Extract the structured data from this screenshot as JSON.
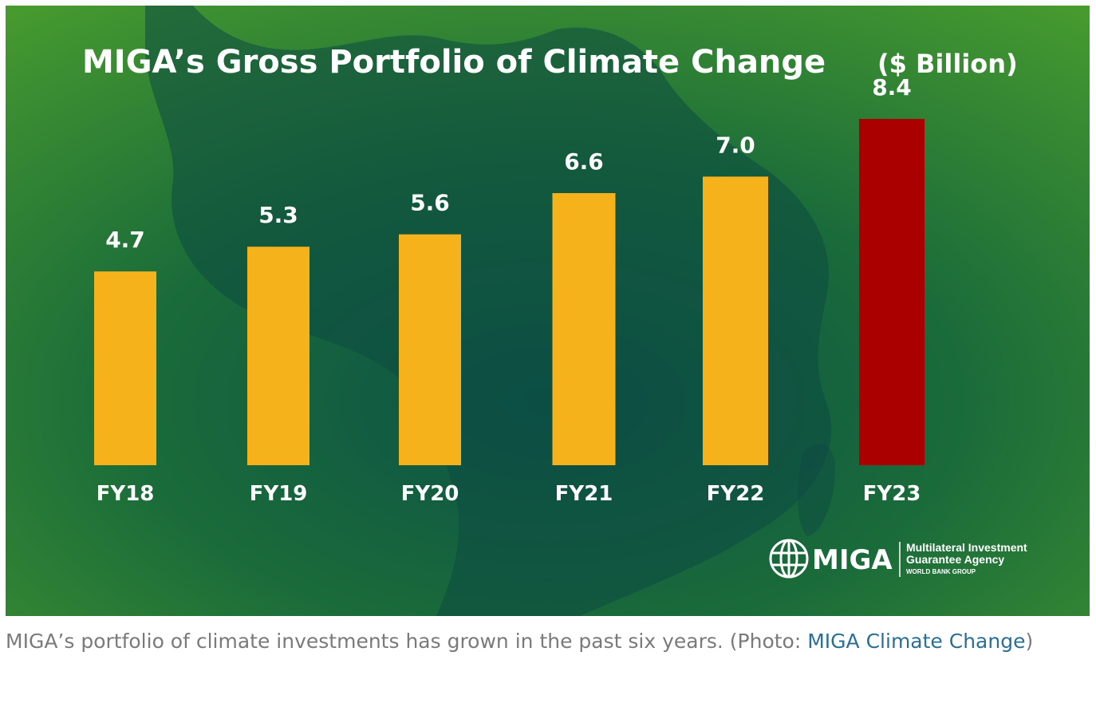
{
  "chart_data": {
    "type": "bar",
    "title": "MIGA’s Gross Portfolio of Climate Change",
    "unit": "($ Billion)",
    "categories": [
      "FY18",
      "FY19",
      "FY20",
      "FY21",
      "FY22",
      "FY23"
    ],
    "values": [
      4.7,
      5.3,
      5.6,
      6.6,
      7.0,
      8.4
    ],
    "value_labels": [
      "4.7",
      "5.3",
      "5.6",
      "6.6",
      "7.0",
      "8.4"
    ],
    "bar_colors": [
      "#f5b21b",
      "#f5b21b",
      "#f5b21b",
      "#f5b21b",
      "#f5b21b",
      "#ab0000"
    ],
    "xlabel": "",
    "ylabel": "",
    "ylim": [
      0,
      8.4
    ],
    "grid": false,
    "legend": "none"
  },
  "logo": {
    "name": "MIGA",
    "line1": "Multilateral Investment",
    "line2": "Guarantee Agency",
    "line3": "WORLD BANK GROUP"
  },
  "caption": {
    "text": "MIGA’s portfolio of climate investments has grown in the past six years. (Photo: ",
    "link": "MIGA Climate Change",
    "suffix": ")"
  },
  "colors": {
    "background_dark": "#0f5a45",
    "background_light": "#3f9a2e",
    "label_text": "#ffffff"
  }
}
